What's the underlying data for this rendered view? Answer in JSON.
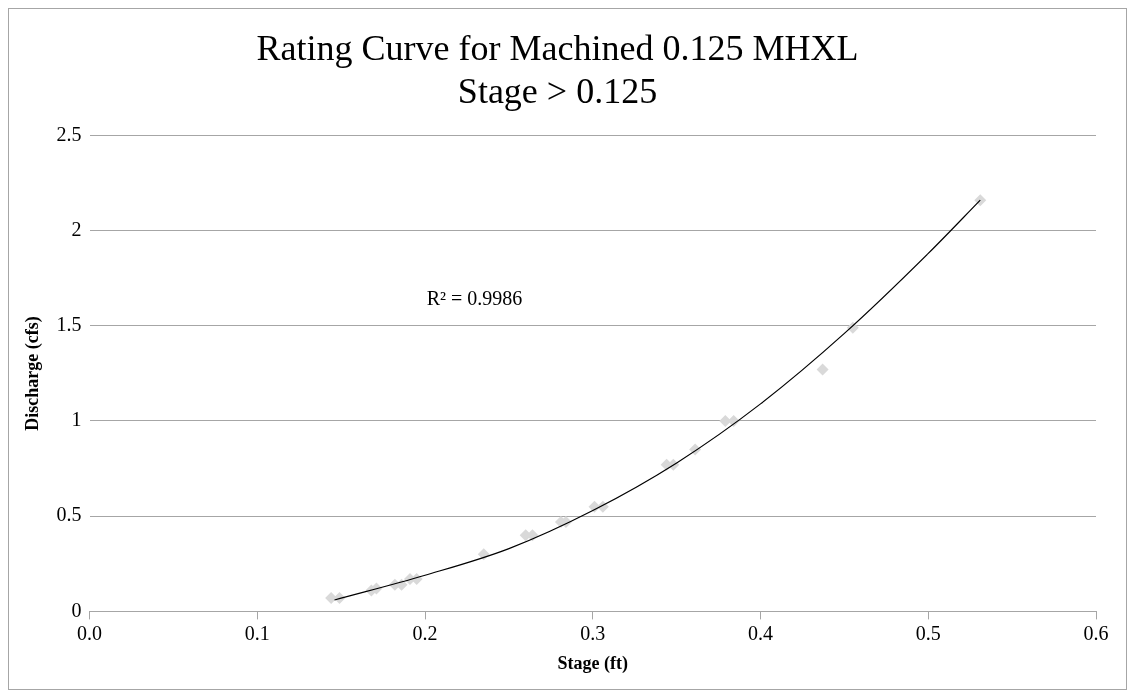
{
  "chart_data": {
    "type": "scatter",
    "title": "Rating Curve for Machined 0.125 MHXL\nStage > 0.125",
    "xlabel": "Stage (ft)",
    "ylabel": "Discharge (cfs)",
    "series": [
      {
        "type": "scatter",
        "color": "#d9d9d9",
        "marker": "diamond",
        "x": [
          0.144,
          0.149,
          0.168,
          0.171,
          0.182,
          0.186,
          0.191,
          0.195,
          0.235,
          0.26,
          0.264,
          0.281,
          0.284,
          0.301,
          0.306,
          0.344,
          0.348,
          0.361,
          0.379,
          0.384,
          0.437,
          0.455,
          0.531
        ],
        "values": [
          0.07,
          0.07,
          0.11,
          0.12,
          0.14,
          0.14,
          0.17,
          0.17,
          0.3,
          0.4,
          0.4,
          0.47,
          0.47,
          0.55,
          0.55,
          0.77,
          0.77,
          0.85,
          1.0,
          1.0,
          1.27,
          1.49,
          2.16
        ]
      },
      {
        "type": "line",
        "color": "#000000",
        "marker": "none",
        "x": [
          0.146,
          0.2,
          0.25,
          0.3,
          0.35,
          0.4,
          0.45,
          0.5,
          0.531
        ],
        "values": [
          0.06,
          0.19,
          0.33,
          0.53,
          0.78,
          1.09,
          1.46,
          1.88,
          2.16
        ]
      }
    ],
    "annotations": [
      "R² = 0.9986"
    ],
    "xlim": [
      0,
      0.6
    ],
    "xticks": [
      {
        "value": 0,
        "label": "0.0"
      },
      {
        "value": 0.1,
        "label": "0.1"
      },
      {
        "value": 0.2,
        "label": "0.2"
      },
      {
        "value": 0.3,
        "label": "0.3"
      },
      {
        "value": 0.4,
        "label": "0.4"
      },
      {
        "value": 0.5,
        "label": "0.5"
      },
      {
        "value": 0.6,
        "label": "0.6"
      }
    ],
    "ylim": [
      0,
      2.5
    ],
    "yticks": [
      0,
      0.5,
      1,
      1.5,
      2,
      2.5
    ],
    "grid": "y",
    "legend": false
  }
}
